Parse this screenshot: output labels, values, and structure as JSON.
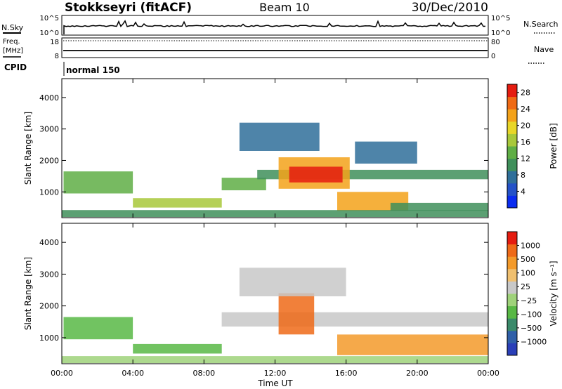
{
  "header": {
    "station": "Stokkseyri (fitACF)",
    "beam": "Beam 10",
    "date": "30/Dec/2010"
  },
  "top_panel": {
    "nsky_label": "N.Sky",
    "nsky_ticks": [
      "10^5",
      "10^0"
    ],
    "nsearch_label": "N.Search",
    "nsearch_ticks": [
      "10^5",
      "10^0"
    ],
    "freq_label": "Freq.",
    "freq_unit": "[MHz]",
    "freq_ticks": [
      "18",
      "8"
    ],
    "nave_label": "Nave",
    "nave_ticks": [
      "80",
      "0"
    ],
    "cpid_label": "CPID",
    "cpid_value": "normal 150"
  },
  "chart_data": [
    {
      "type": "heatmap",
      "name": "power",
      "xlabel": "",
      "ylabel": "Slant Range [km]",
      "x_ticks": [
        "00:00",
        "04:00",
        "08:00",
        "12:00",
        "16:00",
        "20:00",
        "00:00"
      ],
      "y_ticks": [
        "1000",
        "2000",
        "3000",
        "4000"
      ],
      "xlim_hours": [
        0,
        24
      ],
      "ylim_km": [
        180,
        4600
      ],
      "colorbar": {
        "label": "Power [dB]",
        "ticks": [
          "4",
          "8",
          "12",
          "16",
          "20",
          "24",
          "28"
        ],
        "range": [
          0,
          30
        ],
        "colors": [
          "#0a2cf0",
          "#2452c8",
          "#2f6f9a",
          "#3f8f5a",
          "#5fae45",
          "#a8c83a",
          "#e8d628",
          "#f3a21a",
          "#f06a14",
          "#e51c10"
        ]
      },
      "regions": [
        {
          "t": [
            0.1,
            4.0
          ],
          "r": [
            950,
            1650
          ],
          "level": 11
        },
        {
          "t": [
            4.0,
            9.0
          ],
          "r": [
            500,
            800
          ],
          "level": 15
        },
        {
          "t": [
            9.0,
            11.5
          ],
          "r": [
            1050,
            1450
          ],
          "level": 13
        },
        {
          "t": [
            11.0,
            24.0
          ],
          "r": [
            1400,
            1700
          ],
          "level": 9
        },
        {
          "t": [
            12.2,
            16.2
          ],
          "r": [
            1100,
            2100
          ],
          "level": 22
        },
        {
          "t": [
            12.8,
            15.8
          ],
          "r": [
            1300,
            1800
          ],
          "level": 26
        },
        {
          "t": [
            15.5,
            19.5
          ],
          "r": [
            400,
            1000
          ],
          "level": 21
        },
        {
          "t": [
            18.5,
            24.0
          ],
          "r": [
            400,
            650
          ],
          "level": 10
        },
        {
          "t": [
            16.5,
            20.0
          ],
          "r": [
            1900,
            2600
          ],
          "level": 7
        },
        {
          "t": [
            10.0,
            14.5
          ],
          "r": [
            2300,
            3200
          ],
          "level": 6
        },
        {
          "t": [
            0.0,
            24.0
          ],
          "r": [
            200,
            420
          ],
          "level": 8
        }
      ]
    },
    {
      "type": "heatmap",
      "name": "velocity",
      "xlabel": "Time UT",
      "ylabel": "Slant Range [km]",
      "x_ticks": [
        "00:00",
        "04:00",
        "08:00",
        "12:00",
        "16:00",
        "20:00",
        "00:00"
      ],
      "y_ticks": [
        "1000",
        "2000",
        "3000",
        "4000"
      ],
      "xlim_hours": [
        0,
        24
      ],
      "ylim_km": [
        180,
        4600
      ],
      "colorbar": {
        "label": "Velocity [m s⁻¹]",
        "ticks": [
          "1000",
          "500",
          "100",
          "25",
          "−25",
          "−100",
          "−500",
          "−1000"
        ],
        "colors": [
          "#2a3fb8",
          "#2f5fa8",
          "#3a8a6a",
          "#58b845",
          "#9fd27a",
          "#c8c8c8",
          "#f0c070",
          "#f39a2a",
          "#ee6a18",
          "#e51c10"
        ]
      },
      "regions": [
        {
          "t": [
            0.1,
            4.0
          ],
          "r": [
            950,
            1650
          ],
          "level": 3
        },
        {
          "t": [
            4.0,
            9.0
          ],
          "r": [
            500,
            800
          ],
          "level": 3
        },
        {
          "t": [
            9.0,
            24.0
          ],
          "r": [
            1350,
            1800
          ],
          "level": 5
        },
        {
          "t": [
            12.2,
            14.2
          ],
          "r": [
            1100,
            2400
          ],
          "level": 8
        },
        {
          "t": [
            15.5,
            24.0
          ],
          "r": [
            450,
            1100
          ],
          "level": 7
        },
        {
          "t": [
            10.0,
            16.0
          ],
          "r": [
            2300,
            3200
          ],
          "level": 5
        },
        {
          "t": [
            0.0,
            24.0
          ],
          "r": [
            200,
            420
          ],
          "level": 4
        }
      ]
    }
  ]
}
